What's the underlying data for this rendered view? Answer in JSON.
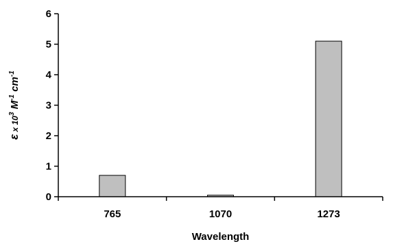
{
  "chart_data": {
    "type": "bar",
    "categories": [
      "765",
      "1070",
      "1273"
    ],
    "values": [
      0.7,
      0.05,
      5.1
    ],
    "title": "",
    "xlabel": "Wavelength",
    "ylabel": {
      "epsilon": "ε",
      "times": " x 10",
      "exp3": "3",
      "unit_m": " M",
      "exp_neg1_a": "-1",
      "unit_cm": " cm",
      "exp_neg1_b": "-1"
    },
    "ylim": [
      0,
      6
    ],
    "yticks": [
      "0",
      "1",
      "2",
      "3",
      "4",
      "5",
      "6"
    ],
    "grid": false,
    "legend": "none",
    "bar_color": "#bfbfbf",
    "bar_edge_color": "#000000"
  }
}
